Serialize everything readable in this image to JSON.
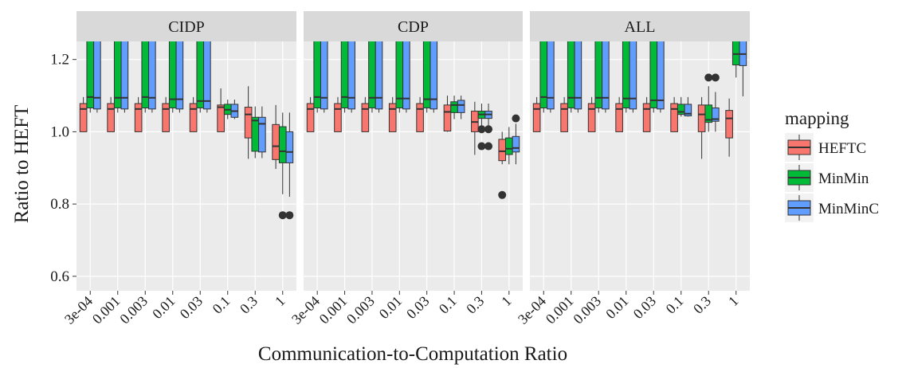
{
  "chart_data": [
    {
      "type": "box",
      "title": "CIDP",
      "categories": [
        "3e-04",
        "0.001",
        "0.003",
        "0.01",
        "0.03",
        "0.1",
        "0.3",
        "1"
      ],
      "ylim": [
        0.56,
        1.25
      ],
      "yticks": [
        0.6,
        0.8,
        {
          "value": 1,
          "label": "1.0"
        },
        1.2
      ],
      "series": [
        {
          "name": "HEFTC",
          "color": "#F8766D",
          "min": [
            1.0,
            1.0,
            1.0,
            1.0,
            1.0,
            1.0,
            0.925,
            0.897
          ],
          "q1": [
            1.0,
            1.0,
            1.0,
            1.0,
            1.0,
            1.0,
            0.983,
            0.923
          ],
          "median": [
            1.063,
            1.063,
            1.063,
            1.063,
            1.063,
            1.068,
            1.048,
            0.96
          ],
          "q3": [
            1.078,
            1.078,
            1.078,
            1.078,
            1.078,
            1.074,
            1.068,
            1.02
          ],
          "max": [
            1.096,
            1.096,
            1.096,
            1.096,
            1.096,
            1.12,
            1.126,
            1.074
          ],
          "outliers": [
            [],
            [],
            [],
            [],
            [],
            [],
            [],
            []
          ]
        },
        {
          "name": "MinMin",
          "color": "#00BA38",
          "min": [
            1.053,
            1.053,
            1.053,
            1.053,
            1.053,
            1.035,
            0.927,
            0.827
          ],
          "q1": [
            1.066,
            1.066,
            1.066,
            1.066,
            1.066,
            1.048,
            0.946,
            0.914
          ],
          "median": [
            1.096,
            1.094,
            1.096,
            1.09,
            1.085,
            1.061,
            1.031,
            0.946
          ],
          "q3": [
            1.4,
            1.4,
            1.4,
            1.4,
            1.4,
            1.076,
            1.04,
            1.014
          ],
          "max": [
            1.6,
            1.6,
            1.6,
            1.6,
            1.6,
            1.089,
            1.07,
            1.053
          ],
          "outliers": [
            [],
            [],
            [],
            [],
            [],
            [],
            [],
            [
              0.769
            ]
          ]
        },
        {
          "name": "MinMinC",
          "color": "#619CFF",
          "min": [
            1.053,
            1.053,
            1.053,
            1.053,
            1.053,
            1.035,
            0.927,
            0.82
          ],
          "q1": [
            1.063,
            1.063,
            1.063,
            1.063,
            1.063,
            1.04,
            0.944,
            0.914
          ],
          "median": [
            1.094,
            1.094,
            1.094,
            1.09,
            1.085,
            1.057,
            1.022,
            0.944
          ],
          "q3": [
            1.4,
            1.4,
            1.4,
            1.4,
            1.4,
            1.076,
            1.04,
            1.0
          ],
          "max": [
            1.6,
            1.6,
            1.6,
            1.6,
            1.6,
            1.089,
            1.07,
            1.053
          ],
          "outliers": [
            [],
            [],
            [],
            [],
            [],
            [],
            [],
            [
              0.769
            ]
          ]
        }
      ]
    },
    {
      "type": "box",
      "title": "CDP",
      "categories": [
        "3e-04",
        "0.001",
        "0.003",
        "0.01",
        "0.03",
        "0.1",
        "0.3",
        "1"
      ],
      "ylim": [
        0.56,
        1.25
      ],
      "yticks": [
        0.6,
        0.8,
        {
          "value": 1,
          "label": "1.0"
        },
        1.2
      ],
      "series": [
        {
          "name": "HEFTC",
          "color": "#F8766D",
          "min": [
            1.0,
            1.0,
            1.0,
            1.0,
            1.0,
            1.0,
            0.936,
            0.91
          ],
          "q1": [
            1.0,
            1.0,
            1.0,
            1.0,
            1.0,
            1.002,
            1.0,
            0.92
          ],
          "median": [
            1.063,
            1.063,
            1.063,
            1.063,
            1.063,
            1.055,
            1.027,
            0.946
          ],
          "q3": [
            1.078,
            1.078,
            1.078,
            1.078,
            1.078,
            1.074,
            1.057,
            0.979
          ],
          "max": [
            1.096,
            1.096,
            1.096,
            1.096,
            1.096,
            1.1,
            1.083,
            1.0
          ],
          "outliers": [
            [],
            [],
            [],
            [],
            [],
            [],
            [],
            [
              0.825
            ]
          ]
        },
        {
          "name": "MinMin",
          "color": "#00BA38",
          "min": [
            1.053,
            1.053,
            1.053,
            1.053,
            1.053,
            1.035,
            1.015,
            0.91
          ],
          "q1": [
            1.066,
            1.066,
            1.066,
            1.066,
            1.066,
            1.053,
            1.037,
            0.937
          ],
          "median": [
            1.096,
            1.096,
            1.094,
            1.092,
            1.09,
            1.074,
            1.048,
            0.953
          ],
          "q3": [
            1.4,
            1.4,
            1.4,
            1.4,
            1.4,
            1.083,
            1.057,
            0.983
          ],
          "max": [
            1.6,
            1.6,
            1.6,
            1.6,
            1.6,
            1.1,
            1.078,
            1.013
          ],
          "outliers": [
            [],
            [],
            [],
            [],
            [],
            [],
            [
              1.007,
              0.96
            ],
            []
          ]
        },
        {
          "name": "MinMinC",
          "color": "#619CFF",
          "min": [
            1.053,
            1.053,
            1.053,
            1.053,
            1.053,
            1.035,
            1.015,
            0.91
          ],
          "q1": [
            1.063,
            1.063,
            1.063,
            1.063,
            1.063,
            1.053,
            1.037,
            0.944
          ],
          "median": [
            1.094,
            1.094,
            1.094,
            1.092,
            1.09,
            1.074,
            1.048,
            0.955
          ],
          "q3": [
            1.4,
            1.4,
            1.4,
            1.4,
            1.4,
            1.087,
            1.057,
            0.987
          ],
          "max": [
            1.6,
            1.6,
            1.6,
            1.6,
            1.6,
            1.1,
            1.078,
            1.022
          ],
          "outliers": [
            [],
            [],
            [],
            [],
            [],
            [],
            [
              1.007,
              0.96
            ],
            [
              1.037
            ]
          ]
        }
      ]
    },
    {
      "type": "box",
      "title": "ALL",
      "categories": [
        "3e-04",
        "0.001",
        "0.003",
        "0.01",
        "0.03",
        "0.1",
        "0.3",
        "1"
      ],
      "ylim": [
        0.56,
        1.25
      ],
      "yticks": [
        0.6,
        0.8,
        {
          "value": 1,
          "label": "1.0"
        },
        1.2
      ],
      "series": [
        {
          "name": "HEFTC",
          "color": "#F8766D",
          "min": [
            1.0,
            1.0,
            1.0,
            1.0,
            1.0,
            1.0,
            0.925,
            0.931
          ],
          "q1": [
            1.0,
            1.0,
            1.0,
            1.0,
            1.0,
            1.0,
            1.0,
            0.983
          ],
          "median": [
            1.063,
            1.063,
            1.063,
            1.063,
            1.063,
            1.063,
            1.048,
            1.037
          ],
          "q3": [
            1.078,
            1.078,
            1.078,
            1.078,
            1.078,
            1.078,
            1.074,
            1.059
          ],
          "max": [
            1.096,
            1.096,
            1.096,
            1.096,
            1.096,
            1.096,
            1.096,
            1.092
          ],
          "outliers": [
            [],
            [],
            [],
            [],
            [],
            [],
            [],
            []
          ]
        },
        {
          "name": "MinMin",
          "color": "#00BA38",
          "min": [
            1.053,
            1.053,
            1.053,
            1.053,
            1.053,
            1.042,
            1.0,
            1.15
          ],
          "q1": [
            1.066,
            1.066,
            1.066,
            1.066,
            1.066,
            1.048,
            1.026,
            1.185
          ],
          "median": [
            1.096,
            1.094,
            1.094,
            1.092,
            1.087,
            1.055,
            1.033,
            1.215
          ],
          "q3": [
            1.4,
            1.4,
            1.4,
            1.4,
            1.4,
            1.076,
            1.074,
            1.3
          ],
          "max": [
            1.6,
            1.6,
            1.6,
            1.6,
            1.6,
            1.096,
            1.126,
            1.4
          ],
          "outliers": [
            [],
            [],
            [],
            [],
            [],
            [],
            [
              1.15
            ],
            []
          ]
        },
        {
          "name": "MinMinC",
          "color": "#619CFF",
          "min": [
            1.053,
            1.053,
            1.053,
            1.053,
            1.053,
            1.042,
            1.0,
            1.098
          ],
          "q1": [
            1.063,
            1.063,
            1.063,
            1.063,
            1.063,
            1.044,
            1.029,
            1.183
          ],
          "median": [
            1.094,
            1.094,
            1.094,
            1.092,
            1.087,
            1.05,
            1.035,
            1.215
          ],
          "q3": [
            1.4,
            1.4,
            1.4,
            1.4,
            1.4,
            1.076,
            1.066,
            1.3
          ],
          "max": [
            1.6,
            1.6,
            1.6,
            1.6,
            1.6,
            1.096,
            1.11,
            1.4
          ],
          "outliers": [
            [],
            [],
            [],
            [],
            [],
            [],
            [
              1.15
            ],
            []
          ]
        }
      ]
    }
  ],
  "x_label": "Communication-to-Computation Ratio",
  "y_label": "Ratio to HEFT",
  "legend_title": "mapping"
}
